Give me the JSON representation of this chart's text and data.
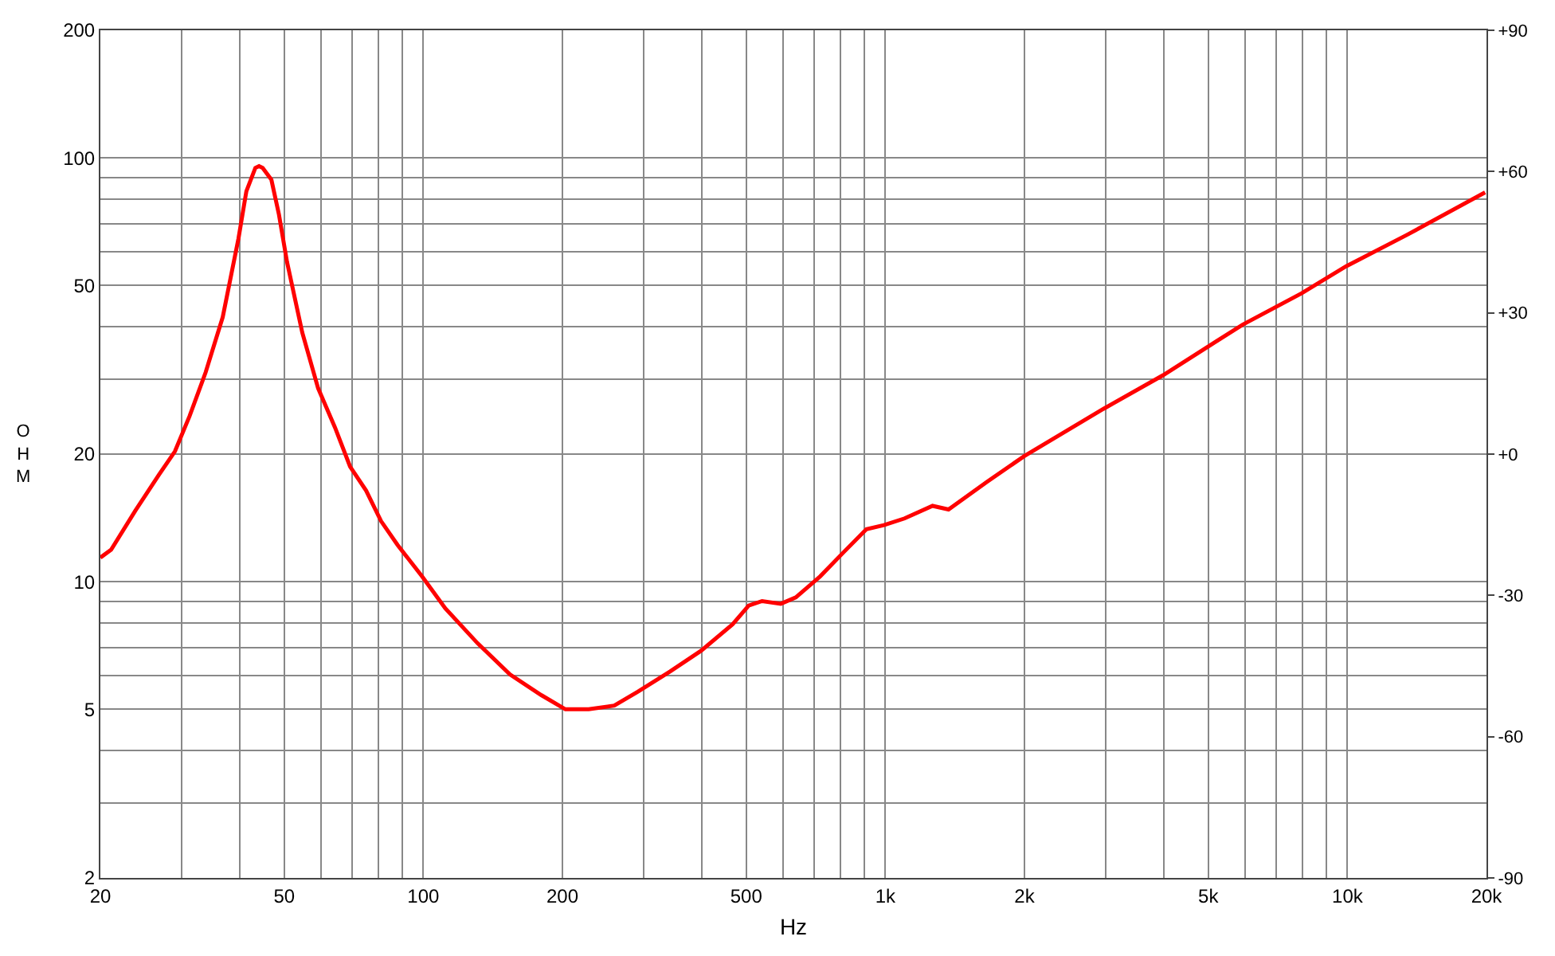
{
  "chart_data": {
    "type": "line",
    "xlabel": "Hz",
    "ylabel": "OHM",
    "log": "xy",
    "grid": true,
    "marker": "none",
    "line_style": "solid",
    "x": [
      20,
      21.1,
      23.8,
      26.8,
      29,
      31.2,
      33.8,
      36.8,
      39.8,
      41.4,
      43.3,
      44.1,
      44.9,
      46.9,
      48.7,
      50.7,
      54.7,
      59.2,
      64.4,
      69.4,
      75.2,
      81,
      88,
      99.3,
      111.6,
      131,
      154,
      180,
      203,
      228,
      259,
      291,
      342,
      399,
      467,
      506,
      541,
      594,
      640,
      723,
      810,
      910,
      993,
      1100,
      1265,
      1370,
      1660,
      2000,
      2970,
      3990,
      5930,
      7960,
      9940,
      13450,
      19860
    ],
    "series": [
      {
        "color": "#ff0000",
        "values": [
          11.4,
          11.9,
          14.7,
          17.9,
          20.3,
          24.6,
          31.2,
          42.1,
          64.5,
          83.4,
          94.7,
          95.6,
          94.7,
          88.8,
          73.5,
          56.8,
          38.7,
          28.6,
          23.1,
          18.7,
          16.4,
          13.9,
          12.2,
          10.3,
          8.65,
          7.16,
          6.04,
          5.4,
          5.0,
          5.0,
          5.1,
          5.5,
          6.14,
          6.87,
          7.93,
          8.78,
          9.0,
          8.87,
          9.18,
          10.3,
          11.7,
          13.3,
          13.6,
          14.1,
          15.1,
          14.8,
          17.2,
          19.8,
          25.6,
          30.7,
          40.4,
          47.9,
          55.5,
          65.8,
          82.9
        ]
      }
    ],
    "xlim": [
      20,
      20000
    ],
    "xticks": [
      20,
      {
        "value": 30,
        "label": null
      },
      {
        "value": 40,
        "label": null
      },
      50,
      {
        "value": 60,
        "label": null
      },
      {
        "value": 70,
        "label": null
      },
      {
        "value": 80,
        "label": null
      },
      {
        "value": 90,
        "label": null
      },
      100,
      200,
      {
        "value": 300,
        "label": null
      },
      {
        "value": 400,
        "label": null
      },
      500,
      {
        "value": 600,
        "label": null
      },
      {
        "value": 700,
        "label": null
      },
      {
        "value": 800,
        "label": null
      },
      {
        "value": 900,
        "label": null
      },
      {
        "value": 1000,
        "label": "1k"
      },
      {
        "value": 2000,
        "label": "2k"
      },
      {
        "value": 3000,
        "label": null
      },
      {
        "value": 4000,
        "label": null
      },
      {
        "value": 5000,
        "label": "5k"
      },
      {
        "value": 6000,
        "label": null
      },
      {
        "value": 7000,
        "label": null
      },
      {
        "value": 8000,
        "label": null
      },
      {
        "value": 9000,
        "label": null
      },
      {
        "value": 10000,
        "label": "10k"
      },
      {
        "value": 20000,
        "label": "20k"
      }
    ],
    "ylim": [
      2,
      200
    ],
    "yticks": [
      2,
      {
        "value": 3,
        "label": null
      },
      {
        "value": 4,
        "label": null
      },
      5,
      {
        "value": 6,
        "label": null
      },
      {
        "value": 7,
        "label": null
      },
      {
        "value": 8,
        "label": null
      },
      {
        "value": 9,
        "label": null
      },
      10,
      20,
      {
        "value": 30,
        "label": null
      },
      {
        "value": 40,
        "label": null
      },
      50,
      {
        "value": 60,
        "label": null
      },
      {
        "value": 70,
        "label": null
      },
      {
        "value": 80,
        "label": null
      },
      {
        "value": 90,
        "label": null
      },
      100,
      200
    ],
    "y2lim": [
      -90,
      90
    ],
    "y2ticks": [
      {
        "value": -90,
        "label": "-90"
      },
      {
        "value": -60,
        "label": "-60"
      },
      {
        "value": -30,
        "label": "-30"
      },
      {
        "value": 0,
        "label": "+0"
      },
      {
        "value": 30,
        "label": "+30"
      },
      {
        "value": 60,
        "label": "+60"
      },
      {
        "value": 90,
        "label": "+90"
      }
    ]
  }
}
